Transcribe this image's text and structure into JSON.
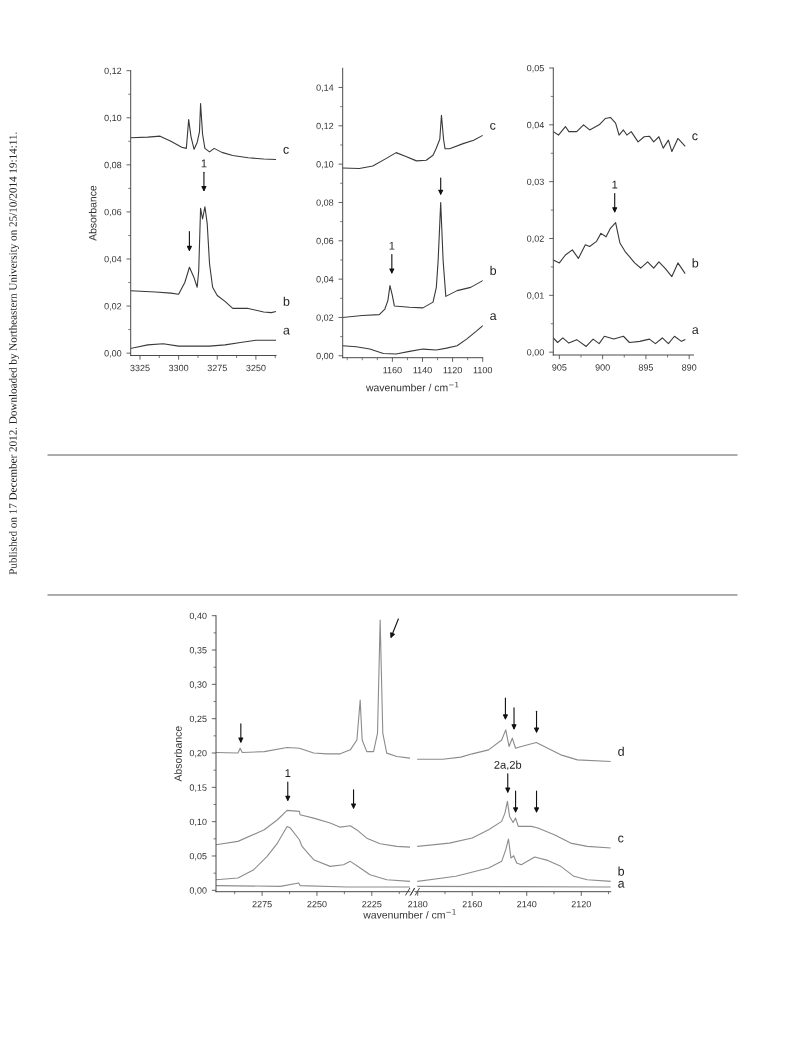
{
  "chart_data": [
    {
      "type": "line",
      "ylabel": "Absorbance",
      "xlim": [
        3331,
        3237
      ],
      "ylim": [
        -0.001,
        0.12
      ],
      "xticks": [
        3325,
        {
          "value": 3312.5,
          "label": null
        },
        3300,
        {
          "value": 3287.5,
          "label": null
        },
        3275,
        {
          "value": 3262.5,
          "label": null
        },
        3250,
        {
          "value": 3237.5,
          "label": null
        }
      ],
      "yticks": [
        {
          "value": 0,
          "label": "0,00"
        },
        {
          "value": 0.01,
          "label": null
        },
        {
          "value": 0.02,
          "label": "0,02"
        },
        {
          "value": 0.03,
          "label": null
        },
        {
          "value": 0.04,
          "label": "0,04"
        },
        {
          "value": 0.05,
          "label": null
        },
        {
          "value": 0.06,
          "label": "0,06"
        },
        {
          "value": 0.07,
          "label": null
        },
        {
          "value": 0.08,
          "label": "0,08"
        },
        {
          "value": 0.09,
          "label": null
        },
        {
          "value": 0.1,
          "label": "0,10"
        },
        {
          "value": 0.11,
          "label": null
        },
        {
          "value": 0.12,
          "label": "0,12"
        }
      ],
      "series": [
        {
          "name": "c",
          "color": "#3a3a3a",
          "x": [
            3331,
            3320,
            3312,
            3305,
            3298,
            3295,
            3293.5,
            3292,
            3290,
            3288,
            3286.5,
            3285.8,
            3284.5,
            3283,
            3280,
            3277,
            3272,
            3265,
            3255,
            3245,
            3237
          ],
          "values": [
            0.0915,
            0.0918,
            0.0922,
            0.09,
            0.0875,
            0.087,
            0.0992,
            0.092,
            0.0866,
            0.0895,
            0.094,
            0.106,
            0.093,
            0.087,
            0.0855,
            0.087,
            0.0853,
            0.084,
            0.083,
            0.0825,
            0.0823
          ]
        },
        {
          "name": "b",
          "color": "#3a3a3a",
          "x": [
            3331,
            3315,
            3305,
            3300,
            3296,
            3293,
            3290,
            3288,
            3287,
            3285.8,
            3284.5,
            3283,
            3281.5,
            3280,
            3278,
            3275,
            3270,
            3265,
            3255,
            3245,
            3240,
            3237
          ],
          "values": [
            0.0265,
            0.026,
            0.0255,
            0.025,
            0.03,
            0.0365,
            0.032,
            0.028,
            0.035,
            0.0615,
            0.057,
            0.0622,
            0.055,
            0.038,
            0.028,
            0.0245,
            0.022,
            0.019,
            0.019,
            0.0175,
            0.0172,
            0.0177
          ]
        },
        {
          "name": "a",
          "color": "#3a3a3a",
          "x": [
            3331,
            3320,
            3310,
            3300,
            3290,
            3280,
            3270,
            3260,
            3250,
            3237
          ],
          "values": [
            0.002,
            0.0035,
            0.004,
            0.003,
            0.003,
            0.003,
            0.0035,
            0.0045,
            0.0055,
            0.0055
          ]
        }
      ],
      "annotations": [
        "Published on 17 December 2012. Downloaded by Northeastern University on 25/10/2014 19:14:11.",
        "1"
      ]
    },
    {
      "type": "line",
      "xlabel": "wavenumber / cm$^{−1}$",
      "xlim": [
        1193,
        1100
      ],
      "ylim": [
        -0.001,
        0.15
      ],
      "xticks": [
        {
          "value": 1190,
          "label": null
        },
        {
          "value": 1180,
          "label": null
        },
        {
          "value": 1170,
          "label": null
        },
        1160,
        {
          "value": 1150,
          "label": null
        },
        1140,
        {
          "value": 1130,
          "label": null
        },
        1120,
        {
          "value": 1110,
          "label": null
        },
        1100
      ],
      "yticks": [
        {
          "value": 0,
          "label": "0,00"
        },
        {
          "value": 0.01,
          "label": null
        },
        {
          "value": 0.02,
          "label": "0,02"
        },
        {
          "value": 0.03,
          "label": null
        },
        {
          "value": 0.04,
          "label": "0,04"
        },
        {
          "value": 0.05,
          "label": null
        },
        {
          "value": 0.06,
          "label": "0,06"
        },
        {
          "value": 0.07,
          "label": null
        },
        {
          "value": 0.08,
          "label": "0,08"
        },
        {
          "value": 0.09,
          "label": null
        },
        {
          "value": 0.1,
          "label": "0,10"
        },
        {
          "value": 0.11,
          "label": null
        },
        {
          "value": 0.12,
          "label": "0,12"
        },
        {
          "value": 0.13,
          "label": null
        },
        {
          "value": 0.14,
          "label": "0,14"
        }
      ],
      "series": [
        {
          "name": "c",
          "color": "#3a3a3a",
          "x": [
            1193,
            1182,
            1173,
            1164,
            1157.5,
            1151,
            1144,
            1137.5,
            1133,
            1131,
            1128.5,
            1127.4,
            1126,
            1125,
            1122,
            1113,
            1106,
            1100
          ],
          "values": [
            0.098,
            0.0977,
            0.099,
            0.103,
            0.106,
            0.104,
            0.1017,
            0.102,
            0.1046,
            0.108,
            0.113,
            0.1255,
            0.113,
            0.108,
            0.108,
            0.1107,
            0.1125,
            0.115
          ]
        },
        {
          "name": "b",
          "color": "#3a3a3a",
          "x": [
            1193,
            1180,
            1168.7,
            1165,
            1163,
            1161.6,
            1160,
            1158.7,
            1148.6,
            1139.7,
            1133,
            1130.8,
            1129.6,
            1127.9,
            1126.3,
            1124.5,
            1117,
            1108,
            1100
          ],
          "values": [
            0.02,
            0.021,
            0.0215,
            0.0244,
            0.0288,
            0.0366,
            0.0314,
            0.026,
            0.0253,
            0.025,
            0.028,
            0.0357,
            0.0497,
            0.08,
            0.0497,
            0.031,
            0.034,
            0.0357,
            0.0392
          ]
        },
        {
          "name": "a",
          "color": "#3a3a3a",
          "x": [
            1193,
            1184,
            1175,
            1166,
            1157.5,
            1148.6,
            1139.7,
            1130.8,
            1124,
            1117,
            1110.7,
            1104,
            1100
          ],
          "values": [
            0.0052,
            0.0047,
            0.0035,
            0.0012,
            0.0009,
            0.0023,
            0.0035,
            0.003,
            0.004,
            0.0052,
            0.0087,
            0.013,
            0.0157
          ]
        }
      ],
      "annotations": [
        "1"
      ]
    },
    {
      "type": "line",
      "xlim": [
        905.7,
        889.5
      ],
      "ylim": [
        -0.0005,
        0.05
      ],
      "xticks": [
        905,
        {
          "value": 902.5,
          "label": null
        },
        900,
        {
          "value": 897.5,
          "label": null
        },
        895,
        {
          "value": 892.5,
          "label": null
        },
        890
      ],
      "yticks": [
        {
          "value": 0,
          "label": "0,00"
        },
        {
          "value": 0.005,
          "label": null
        },
        {
          "value": 0.01,
          "label": "0,01"
        },
        {
          "value": 0.015,
          "label": null
        },
        {
          "value": 0.02,
          "label": "0,02"
        },
        {
          "value": 0.025,
          "label": null
        },
        {
          "value": 0.03,
          "label": "0,03"
        },
        {
          "value": 0.035,
          "label": null
        },
        {
          "value": 0.04,
          "label": "0,04"
        },
        {
          "value": 0.045,
          "label": null
        },
        {
          "value": 0.05,
          "label": "0,05"
        }
      ],
      "series": [
        {
          "name": "c",
          "color": "#3a3a3a",
          "x": [
            905.7,
            905.1,
            904.3,
            903.9,
            903,
            902.2,
            901.5,
            900.4,
            899.7,
            899.1,
            898.5,
            898.1,
            897.6,
            897.2,
            896.7,
            895.9,
            895.2,
            894.6,
            894.1,
            893.5,
            893,
            892.4,
            892,
            891.3,
            890.5
          ],
          "values": [
            0.0388,
            0.0382,
            0.0397,
            0.0388,
            0.0388,
            0.04,
            0.0391,
            0.04,
            0.0411,
            0.0413,
            0.0403,
            0.0382,
            0.0391,
            0.0382,
            0.0388,
            0.037,
            0.0379,
            0.038,
            0.037,
            0.0379,
            0.0359,
            0.0373,
            0.0353,
            0.0376,
            0.0363
          ]
        },
        {
          "name": "b",
          "color": "#3a3a3a",
          "x": [
            905.7,
            905,
            904.3,
            903.5,
            902.8,
            902,
            901.5,
            900.7,
            900.2,
            899.6,
            899.1,
            898.5,
            898,
            897.4,
            896.9,
            896.3,
            895.6,
            894.8,
            894.1,
            893.5,
            892.8,
            892,
            891.3,
            890.5
          ],
          "values": [
            0.0162,
            0.0157,
            0.0171,
            0.018,
            0.0165,
            0.0189,
            0.0186,
            0.0195,
            0.0209,
            0.0203,
            0.0218,
            0.0228,
            0.0192,
            0.0177,
            0.0168,
            0.0157,
            0.0148,
            0.0159,
            0.0148,
            0.0159,
            0.0148,
            0.0133,
            0.0157,
            0.0139
          ]
        },
        {
          "name": "a",
          "color": "#3a3a3a",
          "x": [
            905.7,
            905.2,
            904.6,
            903.9,
            903,
            901.9,
            901.1,
            900.4,
            899.8,
            898.7,
            897.6,
            896.9,
            895.7,
            894.6,
            893.9,
            893.1,
            892.4,
            891.7,
            890.9,
            890.5
          ],
          "values": [
            0.0025,
            0.0017,
            0.0025,
            0.0016,
            0.0022,
            0.001,
            0.0023,
            0.0015,
            0.0028,
            0.0023,
            0.0028,
            0.0017,
            0.0019,
            0.0023,
            0.0015,
            0.0025,
            0.0015,
            0.0028,
            0.0019,
            0.0022
          ]
        }
      ],
      "annotations": [
        "1"
      ]
    },
    {
      "type": "line",
      "ylabel": "Absorbance",
      "xlabel": "wavenumber / cm$^{−1}$",
      "xlim": [
        2296,
        2207.6
      ],
      "ylim": [
        -0.002,
        0.4
      ],
      "xticks": [
        {
          "value": 2287.5,
          "label": null
        },
        2275,
        {
          "value": 2262.5,
          "label": null
        },
        2250,
        {
          "value": 2237.5,
          "label": null
        },
        2225,
        {
          "value": 2212.5,
          "label": null
        }
      ],
      "yticks": [
        {
          "value": 0,
          "label": "0,00"
        },
        {
          "value": 0.025,
          "label": null
        },
        {
          "value": 0.05,
          "label": "0,05"
        },
        {
          "value": 0.075,
          "label": null
        },
        {
          "value": 0.1,
          "label": "0,10"
        },
        {
          "value": 0.125,
          "label": null
        },
        {
          "value": 0.15,
          "label": "0,15"
        },
        {
          "value": 0.175,
          "label": null
        },
        {
          "value": 0.2,
          "label": "0,20"
        },
        {
          "value": 0.225,
          "label": null
        },
        {
          "value": 0.25,
          "label": "0,25"
        },
        {
          "value": 0.275,
          "label": null
        },
        {
          "value": 0.3,
          "label": "0,30"
        },
        {
          "value": 0.325,
          "label": null
        },
        {
          "value": 0.35,
          "label": "0,35"
        },
        {
          "value": 0.375,
          "label": null
        },
        {
          "value": 0.4,
          "label": "0,40"
        }
      ],
      "series": [
        {
          "color": "#8c8c8c",
          "x": [
            2296,
            2286,
            2285,
            2284,
            2274,
            2263.6,
            2258,
            2251.5,
            2245.5,
            2239.4,
            2234.8,
            2231.8,
            2230.3,
            2229.4,
            2227.3,
            2224.2,
            2222.4,
            2221.2,
            2220,
            2218.2,
            2213.6,
            2207.6
          ],
          "values": [
            0.2007,
            0.2,
            0.207,
            0.2007,
            0.202,
            0.208,
            0.207,
            0.2,
            0.1988,
            0.1988,
            0.2046,
            0.219,
            0.277,
            0.219,
            0.202,
            0.202,
            0.229,
            0.3937,
            0.229,
            0.1998,
            0.195,
            0.1925
          ]
        },
        {
          "color": "#8c8c8c",
          "x": [
            2296,
            2286,
            2274,
            2268,
            2263.6,
            2258,
            2257.7,
            2251.5,
            2244,
            2239.4,
            2234.8,
            2231.8,
            2227.3,
            2221.2,
            2213.6,
            2207.6
          ],
          "values": [
            0.0664,
            0.0713,
            0.0882,
            0.1028,
            0.1164,
            0.115,
            0.11,
            0.1052,
            0.098,
            0.092,
            0.094,
            0.088,
            0.076,
            0.0679,
            0.064,
            0.063
          ]
        },
        {
          "color": "#8c8c8c",
          "x": [
            2296,
            2286,
            2278.8,
            2272.7,
            2268,
            2263.6,
            2262.1,
            2258,
            2256.8,
            2251.5,
            2244,
            2237.9,
            2234.8,
            2230.3,
            2225.8,
            2218.2,
            2207.6
          ],
          "values": [
            0.0155,
            0.018,
            0.03,
            0.0495,
            0.0688,
            0.093,
            0.0907,
            0.0737,
            0.064,
            0.0446,
            0.0349,
            0.0373,
            0.0422,
            0.0325,
            0.0228,
            0.0155,
            0.0131
          ]
        },
        {
          "color": "#8c8c8c",
          "x": [
            2296,
            2266.7,
            2258.3,
            2257.6,
            2236.4,
            2207.6
          ],
          "values": [
            0.0068,
            0.0058,
            0.0107,
            0.0068,
            0.0048,
            0.0048
          ]
        }
      ],
      "annotations": [
        "1"
      ]
    },
    {
      "type": "line",
      "tick_labels": "x",
      "xlim": [
        2181,
        2109.2
      ],
      "ylim": [
        -0.002,
        0.4
      ],
      "xticks": [
        2180,
        {
          "value": 2170,
          "label": null
        },
        2160,
        {
          "value": 2150,
          "label": null
        },
        2140,
        {
          "value": 2130,
          "label": null
        },
        2120,
        {
          "value": 2110,
          "label": null
        }
      ],
      "series": [
        {
          "name": "d",
          "color": "#8c8c8c",
          "x": [
            2180,
            2170.8,
            2164.2,
            2160,
            2154,
            2149.2,
            2147.7,
            2146.5,
            2145.3,
            2144.1,
            2142,
            2136.5,
            2132.3,
            2127.5,
            2121.4,
            2109.2
          ],
          "values": [
            0.191,
            0.191,
            0.194,
            0.1988,
            0.2046,
            0.219,
            0.2337,
            0.2095,
            0.2216,
            0.207,
            0.2095,
            0.2153,
            0.207,
            0.1973,
            0.19,
            0.1876
          ]
        },
        {
          "name": "c",
          "color": "#8c8c8c",
          "x": [
            2180,
            2168.4,
            2160,
            2154,
            2149.2,
            2148,
            2147.1,
            2146.3,
            2145,
            2144.1,
            2143.1,
            2138.3,
            2135.9,
            2129.9,
            2123.9,
            2117.8,
            2109.2
          ],
          "values": [
            0.064,
            0.0688,
            0.0761,
            0.0882,
            0.1004,
            0.1125,
            0.1295,
            0.1076,
            0.0989,
            0.1052,
            0.0931,
            0.0931,
            0.0907,
            0.081,
            0.0688,
            0.064,
            0.0616
          ]
        },
        {
          "name": "b",
          "color": "#8c8c8c",
          "x": [
            2180,
            2166,
            2154,
            2149.2,
            2147.7,
            2146.7,
            2145.8,
            2144.8,
            2143.7,
            2142,
            2137.1,
            2132.3,
            2127.5,
            2122.7,
            2117.8,
            2109.2
          ],
          "values": [
            0.0131,
            0.0204,
            0.0325,
            0.0422,
            0.0592,
            0.0747,
            0.047,
            0.0504,
            0.0398,
            0.0373,
            0.0485,
            0.0436,
            0.0349,
            0.0204,
            0.0155,
            0.0131
          ]
        },
        {
          "name": "a",
          "color": "#8c8c8c",
          "x": [
            2180,
            2109.2
          ],
          "values": [
            0.0058,
            0.0048
          ]
        }
      ],
      "annotations": [
        "2a,2b"
      ]
    }
  ]
}
